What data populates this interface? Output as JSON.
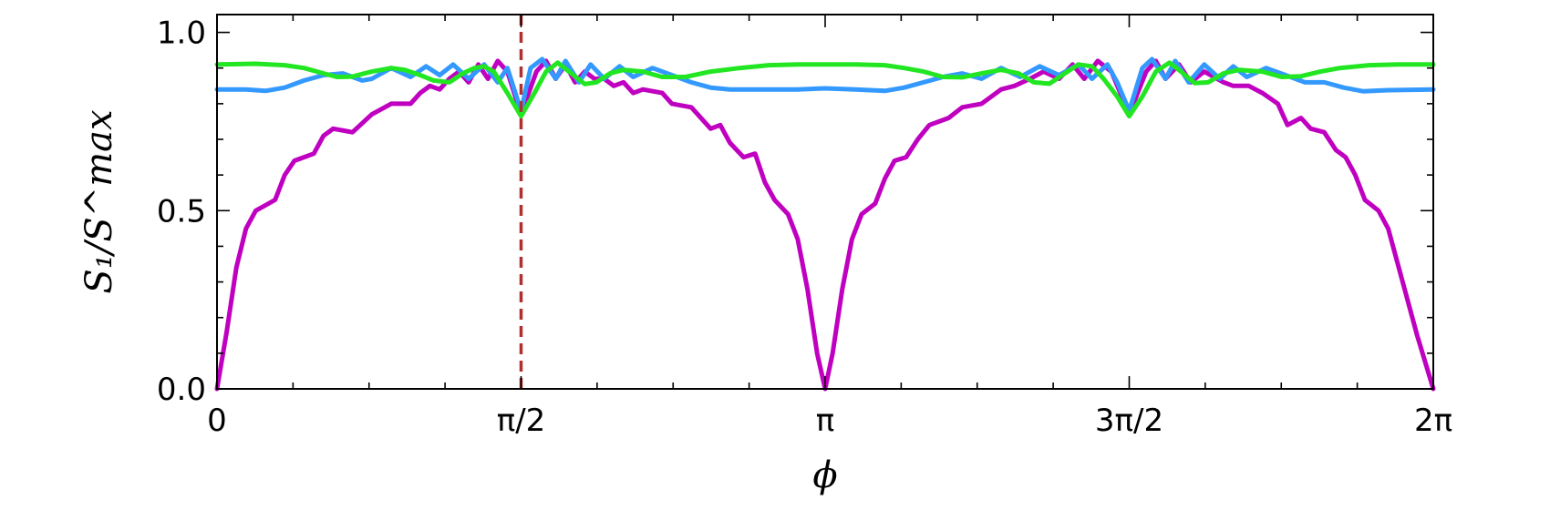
{
  "chart_data": {
    "type": "line",
    "xlabel": "ϕ",
    "ylabel": "S₁/S^max",
    "xlim": [
      0,
      6.2832
    ],
    "ylim": [
      0,
      1.05
    ],
    "x_ticks": [
      {
        "value": 0,
        "label": "0"
      },
      {
        "value": 1.5708,
        "label": "π/2"
      },
      {
        "value": 3.1416,
        "label": "π"
      },
      {
        "value": 4.7124,
        "label": "3π/2"
      },
      {
        "value": 6.2832,
        "label": "2π"
      }
    ],
    "x_minor_step": 0.3927,
    "y_ticks": [
      {
        "value": 0.0,
        "label": "0.0"
      },
      {
        "value": 0.5,
        "label": "0.5"
      },
      {
        "value": 1.0,
        "label": "1.0"
      }
    ],
    "y_minor_step": 0.1,
    "reference_line": {
      "x": 1.5708,
      "color": "#b03030",
      "style": "dashed"
    },
    "grid": false,
    "series": [
      {
        "color": "#c000c0",
        "points": [
          [
            0.0,
            0.0
          ],
          [
            0.05,
            0.16
          ],
          [
            0.1,
            0.34
          ],
          [
            0.15,
            0.45
          ],
          [
            0.2,
            0.5
          ],
          [
            0.3,
            0.53
          ],
          [
            0.35,
            0.6
          ],
          [
            0.4,
            0.64
          ],
          [
            0.45,
            0.65
          ],
          [
            0.5,
            0.66
          ],
          [
            0.55,
            0.71
          ],
          [
            0.6,
            0.73
          ],
          [
            0.7,
            0.72
          ],
          [
            0.8,
            0.77
          ],
          [
            0.9,
            0.8
          ],
          [
            1.0,
            0.8
          ],
          [
            1.05,
            0.83
          ],
          [
            1.1,
            0.85
          ],
          [
            1.15,
            0.84
          ],
          [
            1.2,
            0.87
          ],
          [
            1.25,
            0.89
          ],
          [
            1.3,
            0.86
          ],
          [
            1.35,
            0.91
          ],
          [
            1.4,
            0.87
          ],
          [
            1.45,
            0.92
          ],
          [
            1.5,
            0.89
          ],
          [
            1.5708,
            0.77
          ],
          [
            1.65,
            0.89
          ],
          [
            1.7,
            0.92
          ],
          [
            1.75,
            0.87
          ],
          [
            1.8,
            0.91
          ],
          [
            1.85,
            0.86
          ],
          [
            1.9,
            0.89
          ],
          [
            1.95,
            0.87
          ],
          [
            2.0,
            0.87
          ],
          [
            2.05,
            0.85
          ],
          [
            2.1,
            0.86
          ],
          [
            2.15,
            0.83
          ],
          [
            2.2,
            0.84
          ],
          [
            2.3,
            0.83
          ],
          [
            2.35,
            0.8
          ],
          [
            2.45,
            0.79
          ],
          [
            2.55,
            0.73
          ],
          [
            2.6,
            0.74
          ],
          [
            2.65,
            0.69
          ],
          [
            2.72,
            0.65
          ],
          [
            2.78,
            0.66
          ],
          [
            2.83,
            0.58
          ],
          [
            2.88,
            0.53
          ],
          [
            2.95,
            0.49
          ],
          [
            3.0,
            0.42
          ],
          [
            3.05,
            0.28
          ],
          [
            3.1,
            0.1
          ],
          [
            3.1416,
            0.0
          ],
          [
            3.18,
            0.1
          ],
          [
            3.23,
            0.28
          ],
          [
            3.28,
            0.42
          ],
          [
            3.33,
            0.49
          ],
          [
            3.4,
            0.52
          ],
          [
            3.45,
            0.59
          ],
          [
            3.5,
            0.64
          ],
          [
            3.56,
            0.65
          ],
          [
            3.62,
            0.7
          ],
          [
            3.68,
            0.74
          ],
          [
            3.78,
            0.76
          ],
          [
            3.85,
            0.79
          ],
          [
            3.95,
            0.8
          ],
          [
            4.05,
            0.84
          ],
          [
            4.12,
            0.85
          ],
          [
            4.2,
            0.87
          ],
          [
            4.27,
            0.89
          ],
          [
            4.35,
            0.87
          ],
          [
            4.42,
            0.91
          ],
          [
            4.48,
            0.87
          ],
          [
            4.55,
            0.92
          ],
          [
            4.62,
            0.89
          ],
          [
            4.7124,
            0.77
          ],
          [
            4.8,
            0.89
          ],
          [
            4.85,
            0.92
          ],
          [
            4.9,
            0.87
          ],
          [
            4.97,
            0.91
          ],
          [
            5.03,
            0.86
          ],
          [
            5.1,
            0.89
          ],
          [
            5.2,
            0.86
          ],
          [
            5.25,
            0.85
          ],
          [
            5.33,
            0.85
          ],
          [
            5.4,
            0.83
          ],
          [
            5.48,
            0.8
          ],
          [
            5.53,
            0.74
          ],
          [
            5.6,
            0.76
          ],
          [
            5.65,
            0.73
          ],
          [
            5.72,
            0.72
          ],
          [
            5.78,
            0.67
          ],
          [
            5.83,
            0.65
          ],
          [
            5.88,
            0.6
          ],
          [
            5.93,
            0.53
          ],
          [
            6.0,
            0.5
          ],
          [
            6.05,
            0.45
          ],
          [
            6.1,
            0.35
          ],
          [
            6.2,
            0.15
          ],
          [
            6.2832,
            0.0
          ]
        ]
      },
      {
        "color": "#3399ff",
        "points": [
          [
            0.0,
            0.84
          ],
          [
            0.15,
            0.84
          ],
          [
            0.25,
            0.836
          ],
          [
            0.35,
            0.845
          ],
          [
            0.45,
            0.865
          ],
          [
            0.55,
            0.88
          ],
          [
            0.65,
            0.885
          ],
          [
            0.75,
            0.865
          ],
          [
            0.8,
            0.87
          ],
          [
            0.9,
            0.9
          ],
          [
            1.0,
            0.875
          ],
          [
            1.08,
            0.905
          ],
          [
            1.15,
            0.88
          ],
          [
            1.22,
            0.91
          ],
          [
            1.3,
            0.87
          ],
          [
            1.38,
            0.91
          ],
          [
            1.45,
            0.86
          ],
          [
            1.5,
            0.9
          ],
          [
            1.5708,
            0.78
          ],
          [
            1.62,
            0.9
          ],
          [
            1.68,
            0.925
          ],
          [
            1.75,
            0.87
          ],
          [
            1.8,
            0.92
          ],
          [
            1.87,
            0.86
          ],
          [
            1.93,
            0.91
          ],
          [
            2.0,
            0.87
          ],
          [
            2.08,
            0.905
          ],
          [
            2.15,
            0.875
          ],
          [
            2.25,
            0.9
          ],
          [
            2.35,
            0.88
          ],
          [
            2.45,
            0.86
          ],
          [
            2.55,
            0.845
          ],
          [
            2.65,
            0.84
          ],
          [
            2.8,
            0.84
          ],
          [
            3.0,
            0.84
          ],
          [
            3.1416,
            0.843
          ],
          [
            3.3,
            0.84
          ],
          [
            3.45,
            0.836
          ],
          [
            3.55,
            0.845
          ],
          [
            3.65,
            0.86
          ],
          [
            3.75,
            0.875
          ],
          [
            3.85,
            0.885
          ],
          [
            3.95,
            0.87
          ],
          [
            4.05,
            0.9
          ],
          [
            4.15,
            0.875
          ],
          [
            4.25,
            0.905
          ],
          [
            4.35,
            0.88
          ],
          [
            4.45,
            0.91
          ],
          [
            4.52,
            0.87
          ],
          [
            4.6,
            0.91
          ],
          [
            4.65,
            0.86
          ],
          [
            4.7124,
            0.78
          ],
          [
            4.78,
            0.9
          ],
          [
            4.83,
            0.925
          ],
          [
            4.9,
            0.87
          ],
          [
            4.95,
            0.92
          ],
          [
            5.02,
            0.86
          ],
          [
            5.1,
            0.91
          ],
          [
            5.18,
            0.87
          ],
          [
            5.25,
            0.905
          ],
          [
            5.32,
            0.875
          ],
          [
            5.42,
            0.9
          ],
          [
            5.52,
            0.88
          ],
          [
            5.62,
            0.86
          ],
          [
            5.72,
            0.86
          ],
          [
            5.82,
            0.845
          ],
          [
            5.92,
            0.835
          ],
          [
            6.05,
            0.838
          ],
          [
            6.2832,
            0.84
          ]
        ]
      },
      {
        "color": "#22e622",
        "points": [
          [
            0.0,
            0.91
          ],
          [
            0.2,
            0.912
          ],
          [
            0.35,
            0.908
          ],
          [
            0.45,
            0.9
          ],
          [
            0.55,
            0.885
          ],
          [
            0.62,
            0.875
          ],
          [
            0.7,
            0.876
          ],
          [
            0.8,
            0.89
          ],
          [
            0.9,
            0.9
          ],
          [
            0.97,
            0.895
          ],
          [
            1.05,
            0.88
          ],
          [
            1.12,
            0.865
          ],
          [
            1.2,
            0.86
          ],
          [
            1.27,
            0.885
          ],
          [
            1.33,
            0.9
          ],
          [
            1.38,
            0.905
          ],
          [
            1.43,
            0.89
          ],
          [
            1.5,
            0.83
          ],
          [
            1.5708,
            0.765
          ],
          [
            1.64,
            0.83
          ],
          [
            1.7,
            0.89
          ],
          [
            1.76,
            0.915
          ],
          [
            1.83,
            0.885
          ],
          [
            1.9,
            0.855
          ],
          [
            1.96,
            0.86
          ],
          [
            2.03,
            0.885
          ],
          [
            2.1,
            0.895
          ],
          [
            2.2,
            0.89
          ],
          [
            2.3,
            0.875
          ],
          [
            2.42,
            0.875
          ],
          [
            2.55,
            0.89
          ],
          [
            2.7,
            0.9
          ],
          [
            2.85,
            0.908
          ],
          [
            3.0,
            0.91
          ],
          [
            3.1416,
            0.91
          ],
          [
            3.3,
            0.91
          ],
          [
            3.45,
            0.908
          ],
          [
            3.55,
            0.9
          ],
          [
            3.65,
            0.89
          ],
          [
            3.75,
            0.875
          ],
          [
            3.85,
            0.874
          ],
          [
            3.95,
            0.885
          ],
          [
            4.05,
            0.895
          ],
          [
            4.14,
            0.885
          ],
          [
            4.22,
            0.86
          ],
          [
            4.3,
            0.856
          ],
          [
            4.38,
            0.885
          ],
          [
            4.45,
            0.91
          ],
          [
            4.52,
            0.905
          ],
          [
            4.58,
            0.87
          ],
          [
            4.65,
            0.82
          ],
          [
            4.7124,
            0.765
          ],
          [
            4.78,
            0.82
          ],
          [
            4.85,
            0.89
          ],
          [
            4.92,
            0.915
          ],
          [
            4.98,
            0.89
          ],
          [
            5.05,
            0.858
          ],
          [
            5.12,
            0.86
          ],
          [
            5.2,
            0.885
          ],
          [
            5.28,
            0.895
          ],
          [
            5.4,
            0.89
          ],
          [
            5.5,
            0.875
          ],
          [
            5.6,
            0.877
          ],
          [
            5.7,
            0.89
          ],
          [
            5.8,
            0.9
          ],
          [
            5.95,
            0.908
          ],
          [
            6.1,
            0.91
          ],
          [
            6.2832,
            0.91
          ]
        ]
      }
    ]
  }
}
